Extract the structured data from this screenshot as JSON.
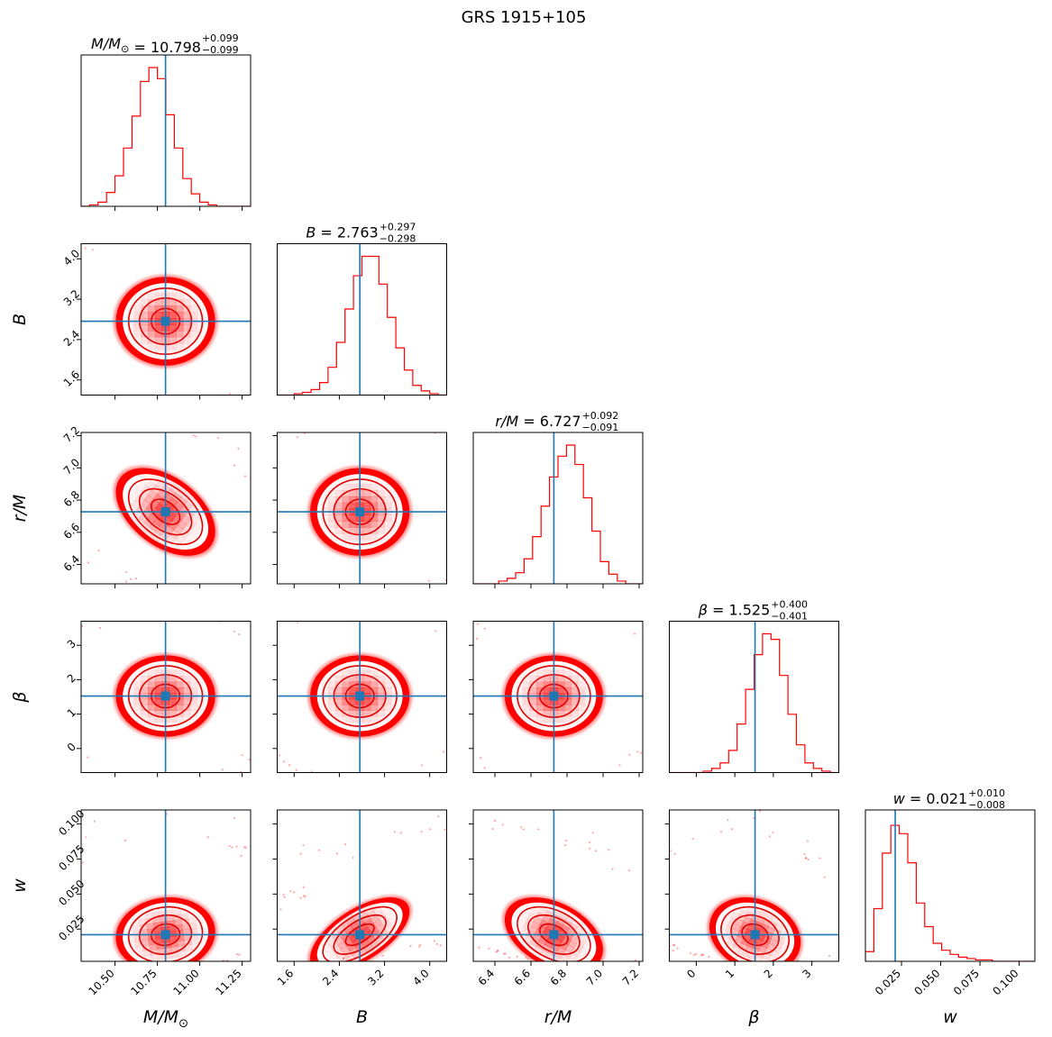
{
  "chart_data": {
    "type": "corner",
    "title": "GRS 1915+105",
    "params": [
      {
        "id": "M",
        "label_main": "M/M",
        "label_sub": "⊙",
        "title_main": "M/M",
        "title_sub": "⊙",
        "median": "10.798",
        "plus": "+0.099",
        "minus": "−0.099",
        "value": 10.798,
        "sigma": 0.099,
        "range": [
          10.3,
          11.3
        ],
        "ticks": [
          10.5,
          10.75,
          11.0,
          11.25
        ],
        "tick_labels": [
          "10.50",
          "10.75",
          "11.00",
          "11.25"
        ]
      },
      {
        "id": "B",
        "label_main": "B",
        "label_sub": "",
        "title_main": "B",
        "title_sub": "",
        "median": "2.763",
        "plus": "+0.297",
        "minus": "−0.298",
        "value": 2.763,
        "sigma": 0.297,
        "range": [
          1.3,
          4.3
        ],
        "ticks": [
          1.6,
          2.4,
          3.2,
          4.0
        ],
        "tick_labels": [
          "1.6",
          "2.4",
          "3.2",
          "4.0"
        ]
      },
      {
        "id": "r",
        "label_main": "r/M",
        "label_sub": "",
        "title_main": "r/M",
        "title_sub": "",
        "median": "6.727",
        "plus": "+0.092",
        "minus": "−0.091",
        "value": 6.727,
        "sigma": 0.092,
        "range": [
          6.28,
          7.22
        ],
        "ticks": [
          6.4,
          6.6,
          6.8,
          7.0,
          7.2
        ],
        "tick_labels": [
          "6.4",
          "6.6",
          "6.8",
          "7.0",
          "7.2"
        ]
      },
      {
        "id": "beta",
        "label_main": "β",
        "label_sub": "",
        "title_main": "β",
        "title_sub": "",
        "median": "1.525",
        "plus": "+0.400",
        "minus": "−0.401",
        "value": 1.525,
        "sigma": 0.4,
        "range": [
          -0.7,
          3.7
        ],
        "ticks": [
          0,
          1,
          2,
          3
        ],
        "tick_labels": [
          "0",
          "1",
          "2",
          "3"
        ]
      },
      {
        "id": "w",
        "label_main": "w",
        "label_sub": "",
        "title_main": "w",
        "title_sub": "",
        "median": "0.021",
        "plus": "+0.010",
        "minus": "−0.008",
        "value": 0.021,
        "sigma": 0.009,
        "range": [
          0.002,
          0.11
        ],
        "ticks": [
          0.025,
          0.05,
          0.075,
          0.1
        ],
        "tick_labels": [
          "0.025",
          "0.050",
          "0.075",
          "0.100"
        ]
      }
    ],
    "histograms": [
      [
        0,
        0.01,
        0.03,
        0.1,
        0.22,
        0.42,
        0.65,
        0.9,
        1.0,
        0.92,
        0.66,
        0.42,
        0.2,
        0.09,
        0.03,
        0.01,
        0,
        0,
        0,
        0
      ],
      [
        0,
        0,
        0.01,
        0.02,
        0.04,
        0.09,
        0.2,
        0.38,
        0.62,
        0.86,
        1.0,
        1.0,
        0.8,
        0.56,
        0.34,
        0.18,
        0.07,
        0.03,
        0.01,
        0
      ],
      [
        0,
        0,
        0,
        0.02,
        0.04,
        0.08,
        0.18,
        0.34,
        0.56,
        0.77,
        0.92,
        1.0,
        0.86,
        0.62,
        0.38,
        0.16,
        0.07,
        0.02,
        0,
        0
      ],
      [
        0,
        0,
        0,
        0,
        0.01,
        0.03,
        0.07,
        0.16,
        0.35,
        0.6,
        0.85,
        1.0,
        0.96,
        0.7,
        0.42,
        0.2,
        0.07,
        0.03,
        0.01,
        0
      ],
      [
        0.07,
        0.38,
        0.78,
        0.98,
        0.92,
        0.71,
        0.42,
        0.25,
        0.13,
        0.08,
        0.05,
        0.03,
        0.02,
        0.01,
        0.01,
        0,
        0,
        0,
        0,
        0
      ]
    ],
    "correlations": {
      "M-r": -0.45,
      "B-w": 0.62,
      "r-w": -0.4,
      "beta-w": -0.2,
      "M-w": 0.08
    },
    "colors": {
      "samples": "#ff0000",
      "truth": "#1f77b4"
    }
  }
}
